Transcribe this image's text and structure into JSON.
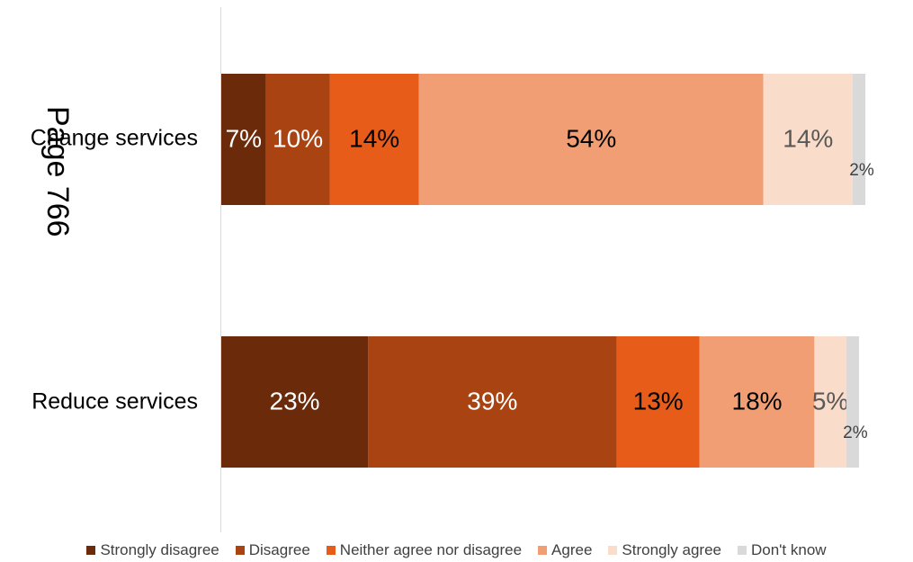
{
  "watermark": "Page 766",
  "chart_data": {
    "type": "bar",
    "orientation": "horizontal",
    "stacked": true,
    "categories": [
      "Change services",
      "Reduce services"
    ],
    "series": [
      {
        "name": "Strongly disagree",
        "values": [
          7,
          23
        ],
        "labels": [
          "7%",
          "23%"
        ],
        "color": "#6b2a0a"
      },
      {
        "name": "Disagree",
        "values": [
          10,
          39
        ],
        "labels": [
          "10%",
          "39%"
        ],
        "color": "#a94312"
      },
      {
        "name": "Neither agree nor disagree",
        "values": [
          14,
          13
        ],
        "labels": [
          "14%",
          "13%"
        ],
        "color": "#e85c1a"
      },
      {
        "name": "Agree",
        "values": [
          54,
          18
        ],
        "labels": [
          "54%",
          "18%"
        ],
        "color": "#f29e74"
      },
      {
        "name": "Strongly agree",
        "values": [
          14,
          5
        ],
        "labels": [
          "14%",
          "5%"
        ],
        "color": "#fadcca"
      },
      {
        "name": "Don't know",
        "values": [
          2,
          2
        ],
        "labels": [
          "2%",
          "2%"
        ],
        "color": "#d9d9d9"
      }
    ],
    "xlim": [
      0,
      100
    ],
    "grid": false,
    "legend": "bottom",
    "title": "",
    "xlabel": "",
    "ylabel": ""
  }
}
